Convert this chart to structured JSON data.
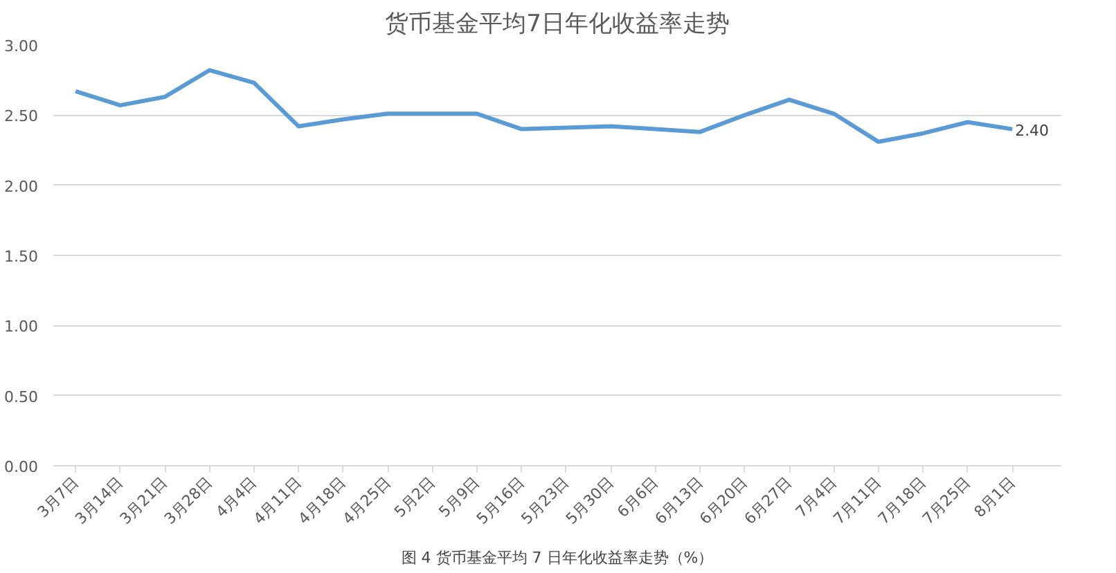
{
  "chart_data": {
    "type": "line",
    "title": "货币基金平均7日年化收益率走势",
    "categories": [
      "3月7日",
      "3月14日",
      "3月21日",
      "3月28日",
      "4月4日",
      "4月11日",
      "4月18日",
      "4月25日",
      "5月2日",
      "5月9日",
      "5月16日",
      "5月23日",
      "5月30日",
      "6月6日",
      "6月13日",
      "6月20日",
      "6月27日",
      "7月4日",
      "7月11日",
      "7月18日",
      "7月25日",
      "8月1日"
    ],
    "series": [
      {
        "color": "#5b9bd5",
        "values": [
          2.67,
          2.57,
          2.63,
          2.82,
          2.73,
          2.42,
          2.47,
          2.51,
          2.51,
          2.51,
          2.4,
          2.41,
          2.42,
          2.4,
          2.38,
          2.5,
          2.61,
          2.51,
          2.31,
          2.37,
          2.45,
          2.4
        ],
        "value_labels": [
          null,
          null,
          null,
          null,
          null,
          null,
          null,
          null,
          null,
          null,
          null,
          null,
          null,
          null,
          null,
          null,
          null,
          null,
          null,
          null,
          null,
          "2.40"
        ]
      }
    ],
    "ylim": [
      0,
      3
    ],
    "yticks": [
      {
        "value": 0,
        "label": "0.00"
      },
      {
        "value": 0.5,
        "label": "0.50"
      },
      {
        "value": 1,
        "label": "1.00"
      },
      {
        "value": 1.5,
        "label": "1.50"
      },
      {
        "value": 2,
        "label": "2.00"
      },
      {
        "value": 2.5,
        "label": "2.50"
      },
      {
        "value": 3,
        "label": "3.00"
      }
    ],
    "grid": "y",
    "marker": "none",
    "line_style": "solid",
    "annotations": [
      "图 4 货币基金平均 7 日年化收益率走势（%）"
    ]
  }
}
